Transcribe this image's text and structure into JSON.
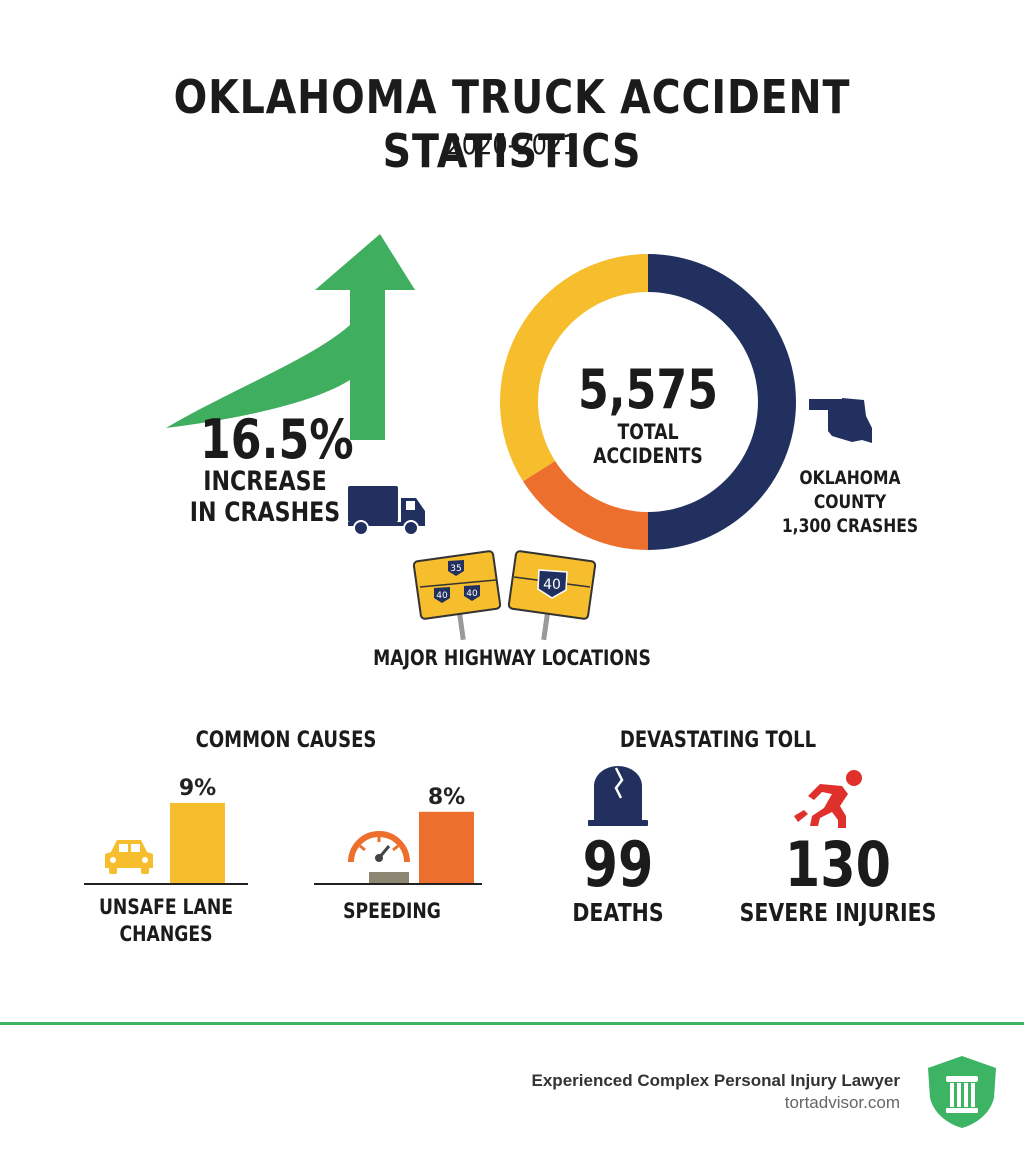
{
  "header": {
    "title": "OKLAHOMA TRUCK ACCIDENT STATISTICS",
    "subtitle": "2020-2021"
  },
  "increase": {
    "value": "16.5%",
    "label_line1": "INCREASE",
    "label_line2": "IN CRASHES"
  },
  "total": {
    "value": "5,575",
    "label": "TOTAL ACCIDENTS"
  },
  "county": {
    "label_line1": "OKLAHOMA COUNTY",
    "label_line2": "1,300 CRASHES"
  },
  "highways": {
    "label": "MAJOR HIGHWAY LOCATIONS",
    "sign1_top": "35",
    "sign1_left": "40",
    "sign1_right": "40",
    "sign2": "40"
  },
  "causes": {
    "heading": "COMMON CAUSES",
    "items": [
      {
        "label_line1": "UNSAFE LANE",
        "label_line2": "CHANGES",
        "value_label": "9%"
      },
      {
        "label_line1": "SPEEDING",
        "label_line2": "",
        "value_label": "8%"
      }
    ]
  },
  "toll": {
    "heading": "DEVASTATING TOLL",
    "deaths_value": "99",
    "deaths_label": "DEATHS",
    "injuries_value": "130",
    "injuries_label": "SEVERE INJURIES"
  },
  "footer": {
    "tagline": "Experienced Complex Personal Injury Lawyer",
    "site": "tortadvisor.com"
  },
  "colors": {
    "green": "#3fae5e",
    "navy": "#22305f",
    "yellow": "#f6bd2c",
    "orange": "#ec6f2d",
    "red": "#e0302b",
    "footer_green": "#3cb463"
  },
  "chart_data": [
    {
      "type": "pie",
      "title": "",
      "center_value": "5,575",
      "center_label": "TOTAL ACCIDENTS",
      "slices": [
        {
          "color": "#22305f",
          "value": 50
        },
        {
          "color": "#ec6f2d",
          "value": 16
        },
        {
          "color": "#f6bd2c",
          "value": 34
        }
      ]
    },
    {
      "type": "bar",
      "title": "COMMON CAUSES",
      "categories": [
        "UNSAFE LANE CHANGES",
        "SPEEDING"
      ],
      "values": [
        9,
        8
      ],
      "unit": "%"
    }
  ]
}
